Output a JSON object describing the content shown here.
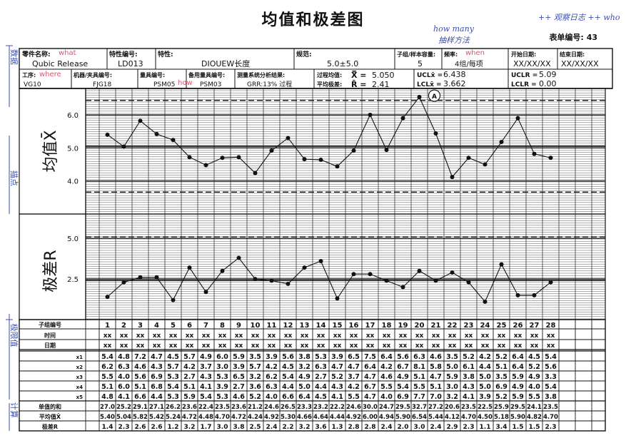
{
  "title": "均值和极差图",
  "form_no_label": "表单编号:",
  "form_no": "43",
  "header": {
    "part_name_label": "零件名称:",
    "part_name": "Qubic Release",
    "char_no_label": "特性编号:",
    "char_no": "LD013",
    "characteristic_label": "特性:",
    "characteristic": "DIOUEW长度",
    "spec_label": "规范:",
    "spec": "5.0±5.0",
    "subgroup_label": "子组/样本容量:",
    "subgroup": "5",
    "freq_label": "频率:",
    "freq": "4组/每项",
    "start_label": "开始日期:",
    "start": "XX/XX/XX",
    "end_label": "结束日期:",
    "end": "XX/XX/XX",
    "process_label": "工序:",
    "process": "VG10",
    "machine_label": "机器/夹具编号:",
    "machine": "FJG18",
    "gauge_label": "量具编号:",
    "gauge": "PSM05",
    "spare_gauge_label": "备用量具编号:",
    "spare_gauge": "PSM03",
    "msa_label": "测量系统分析结果:",
    "msa": "GRR:13% 过程",
    "proc_mean_label": "过程均值:",
    "proc_mean_sym": "X̿ =",
    "proc_mean": "5.050",
    "avg_range_label": "平均极差:",
    "avg_range_sym": "R̄ =",
    "avg_range": "2.41",
    "ucl_x_label": "UCLx̄ =",
    "ucl_x": "6.438",
    "lcl_x_label": "LCLx̄ =",
    "lcl_x": "3.662",
    "ucl_r_label": "UCLR =",
    "ucl_r": "5.09",
    "lcl_r_label": "LCLR =",
    "lcl_r": "0.00"
  },
  "annotations": {
    "what": "what",
    "where": "where",
    "how": "how",
    "how_many": "how many",
    "how_many_zh": "抽样方法",
    "when": "when",
    "who": "++ 观察日志 ++ who",
    "side_1": "数据",
    "side_2": "描点",
    "side_3": "极限值",
    "side_4": "计算",
    "marker": "A"
  },
  "labels": {
    "xbar_chart": "均值X̄",
    "r_chart": "极差R",
    "row_subgroup": "子组编号",
    "row_time": "时间",
    "row_date": "日期",
    "row_sum": "单值的和",
    "row_mean": "平均值X̄",
    "row_range": "极差R",
    "x_labels": [
      "x1",
      "x2",
      "x3",
      "x4",
      "x5"
    ],
    "time_val": "xx",
    "date_val": "xx"
  },
  "chart_data": [
    {
      "type": "line",
      "title": "均值X̄",
      "x": [
        1,
        2,
        3,
        4,
        5,
        6,
        7,
        8,
        9,
        10,
        11,
        12,
        13,
        14,
        15,
        16,
        17,
        18,
        19,
        20,
        21,
        22,
        23,
        24,
        25,
        26,
        27,
        28
      ],
      "y": [
        5.4,
        5.04,
        5.82,
        5.42,
        5.24,
        4.72,
        4.48,
        4.7,
        4.72,
        4.24,
        4.92,
        5.3,
        4.66,
        4.64,
        4.44,
        4.92,
        6.0,
        4.94,
        5.9,
        6.54,
        5.44,
        4.12,
        4.7,
        4.5,
        5.18,
        5.9,
        4.82,
        4.7
      ],
      "yticks": [
        4.0,
        5.0,
        6.0
      ],
      "ylim": [
        3.0,
        6.8
      ],
      "ucl": 6.438,
      "cl": 5.05,
      "lcl": 3.662
    },
    {
      "type": "line",
      "title": "极差R",
      "x": [
        1,
        2,
        3,
        4,
        5,
        6,
        7,
        8,
        9,
        10,
        11,
        12,
        13,
        14,
        15,
        16,
        17,
        18,
        19,
        20,
        21,
        22,
        23,
        24,
        25,
        26,
        27,
        28
      ],
      "y": [
        1.4,
        2.3,
        2.6,
        2.6,
        1.2,
        3.2,
        1.7,
        3.0,
        3.8,
        2.5,
        2.4,
        2.2,
        3.2,
        3.6,
        1.3,
        2.8,
        2.8,
        2.4,
        2.0,
        3.0,
        2.4,
        2.9,
        2.3,
        1.1,
        3.4,
        1.5,
        1.5,
        2.3
      ],
      "yticks": [
        2.5,
        5.0
      ],
      "ylim": [
        0,
        6.5
      ],
      "ucl": 5.09,
      "cl": 2.41,
      "lcl": 0.0
    }
  ],
  "table": {
    "subgroups": [
      "1",
      "2",
      "3",
      "4",
      "5",
      "6",
      "7",
      "8",
      "9",
      "10",
      "11",
      "12",
      "13",
      "14",
      "15",
      "16",
      "17",
      "18",
      "19",
      "20",
      "21",
      "22",
      "23",
      "24",
      "25",
      "26",
      "27",
      "28"
    ],
    "x1": [
      "5.4",
      "4.8",
      "7.2",
      "4.7",
      "4.5",
      "5.7",
      "4.9",
      "6.0",
      "5.9",
      "3.5",
      "3.9",
      "5.6",
      "3.8",
      "5.3",
      "3.9",
      "6.5",
      "7.5",
      "6.4",
      "5.6",
      "6.3",
      "4.6",
      "3.5",
      "5.2",
      "4.2",
      "5.2",
      "6.4",
      "4.5",
      "5.4"
    ],
    "x2": [
      "6.2",
      "6.3",
      "4.6",
      "4.3",
      "5.7",
      "4.2",
      "3.7",
      "3.0",
      "3.9",
      "5.7",
      "4.2",
      "4.5",
      "3.2",
      "6.3",
      "4.7",
      "4.7",
      "6.4",
      "4.2",
      "6.7",
      "8.1",
      "5.8",
      "5.0",
      "6.1",
      "4.4",
      "5.1",
      "6.4",
      "5.2",
      "5.6"
    ],
    "x3": [
      "5.5",
      "4.0",
      "5.6",
      "6.9",
      "5.3",
      "2.7",
      "4.3",
      "5.3",
      "6.5",
      "3.2",
      "6.2",
      "5.4",
      "4.9",
      "2.7",
      "5.2",
      "3.7",
      "4.7",
      "4.6",
      "4.9",
      "5.1",
      "4.7",
      "5.9",
      "3.8",
      "5.0",
      "3.5",
      "5.9",
      "4.9",
      "3.3"
    ],
    "x4": [
      "5.1",
      "6.0",
      "5.1",
      "6.8",
      "5.4",
      "5.1",
      "4.1",
      "3.9",
      "2.7",
      "3.6",
      "6.3",
      "4.4",
      "5.0",
      "4.4",
      "4.3",
      "4.2",
      "6.7",
      "5.5",
      "5.4",
      "5.5",
      "5.1",
      "3.0",
      "4.3",
      "5.0",
      "6.9",
      "4.9",
      "4.0",
      "5.4"
    ],
    "x5": [
      "4.8",
      "4.1",
      "6.6",
      "4.4",
      "5.3",
      "5.9",
      "5.4",
      "5.3",
      "4.6",
      "5.2",
      "4.0",
      "6.6",
      "6.4",
      "4.5",
      "4.1",
      "5.5",
      "4.7",
      "4.0",
      "6.9",
      "7.7",
      "7.0",
      "3.2",
      "4.1",
      "3.9",
      "5.2",
      "5.9",
      "5.5",
      "3.8"
    ],
    "sum": [
      "27.0",
      "25.2",
      "29.1",
      "27.1",
      "26.2",
      "23.6",
      "22.4",
      "23.5",
      "23.6",
      "21.2",
      "24.6",
      "26.5",
      "23.3",
      "23.2",
      "22.2",
      "24.6",
      "30.0",
      "24.7",
      "29.5",
      "32.7",
      "27.2",
      "20.6",
      "23.5",
      "22.5",
      "25.9",
      "29.5",
      "24.1",
      "23.5"
    ],
    "mean": [
      "5.40",
      "5.04",
      "5.82",
      "5.42",
      "5.24",
      "4.72",
      "4.48",
      "4.70",
      "4.72",
      "4.24",
      "4.92",
      "5.30",
      "4.66",
      "4.64",
      "4.44",
      "4.92",
      "6.00",
      "4.94",
      "5.90",
      "6.54",
      "5.44",
      "4.12",
      "4.70",
      "4.50",
      "5.18",
      "5.90",
      "4.82",
      "4.70"
    ],
    "range": [
      "1.4",
      "2.3",
      "2.6",
      "2.6",
      "1.2",
      "3.2",
      "1.7",
      "3.0",
      "3.8",
      "2.5",
      "2.4",
      "2.2",
      "3.2",
      "3.6",
      "1.3",
      "2.8",
      "2.8",
      "2.4",
      "2.0",
      "3.0",
      "2.4",
      "2.9",
      "2.3",
      "1.1",
      "3.4",
      "1.5",
      "1.5",
      "2.3"
    ]
  },
  "colors": {
    "ink": "#111111",
    "pen_blue": "#3a4fb0",
    "pen_red": "#d45a74"
  }
}
